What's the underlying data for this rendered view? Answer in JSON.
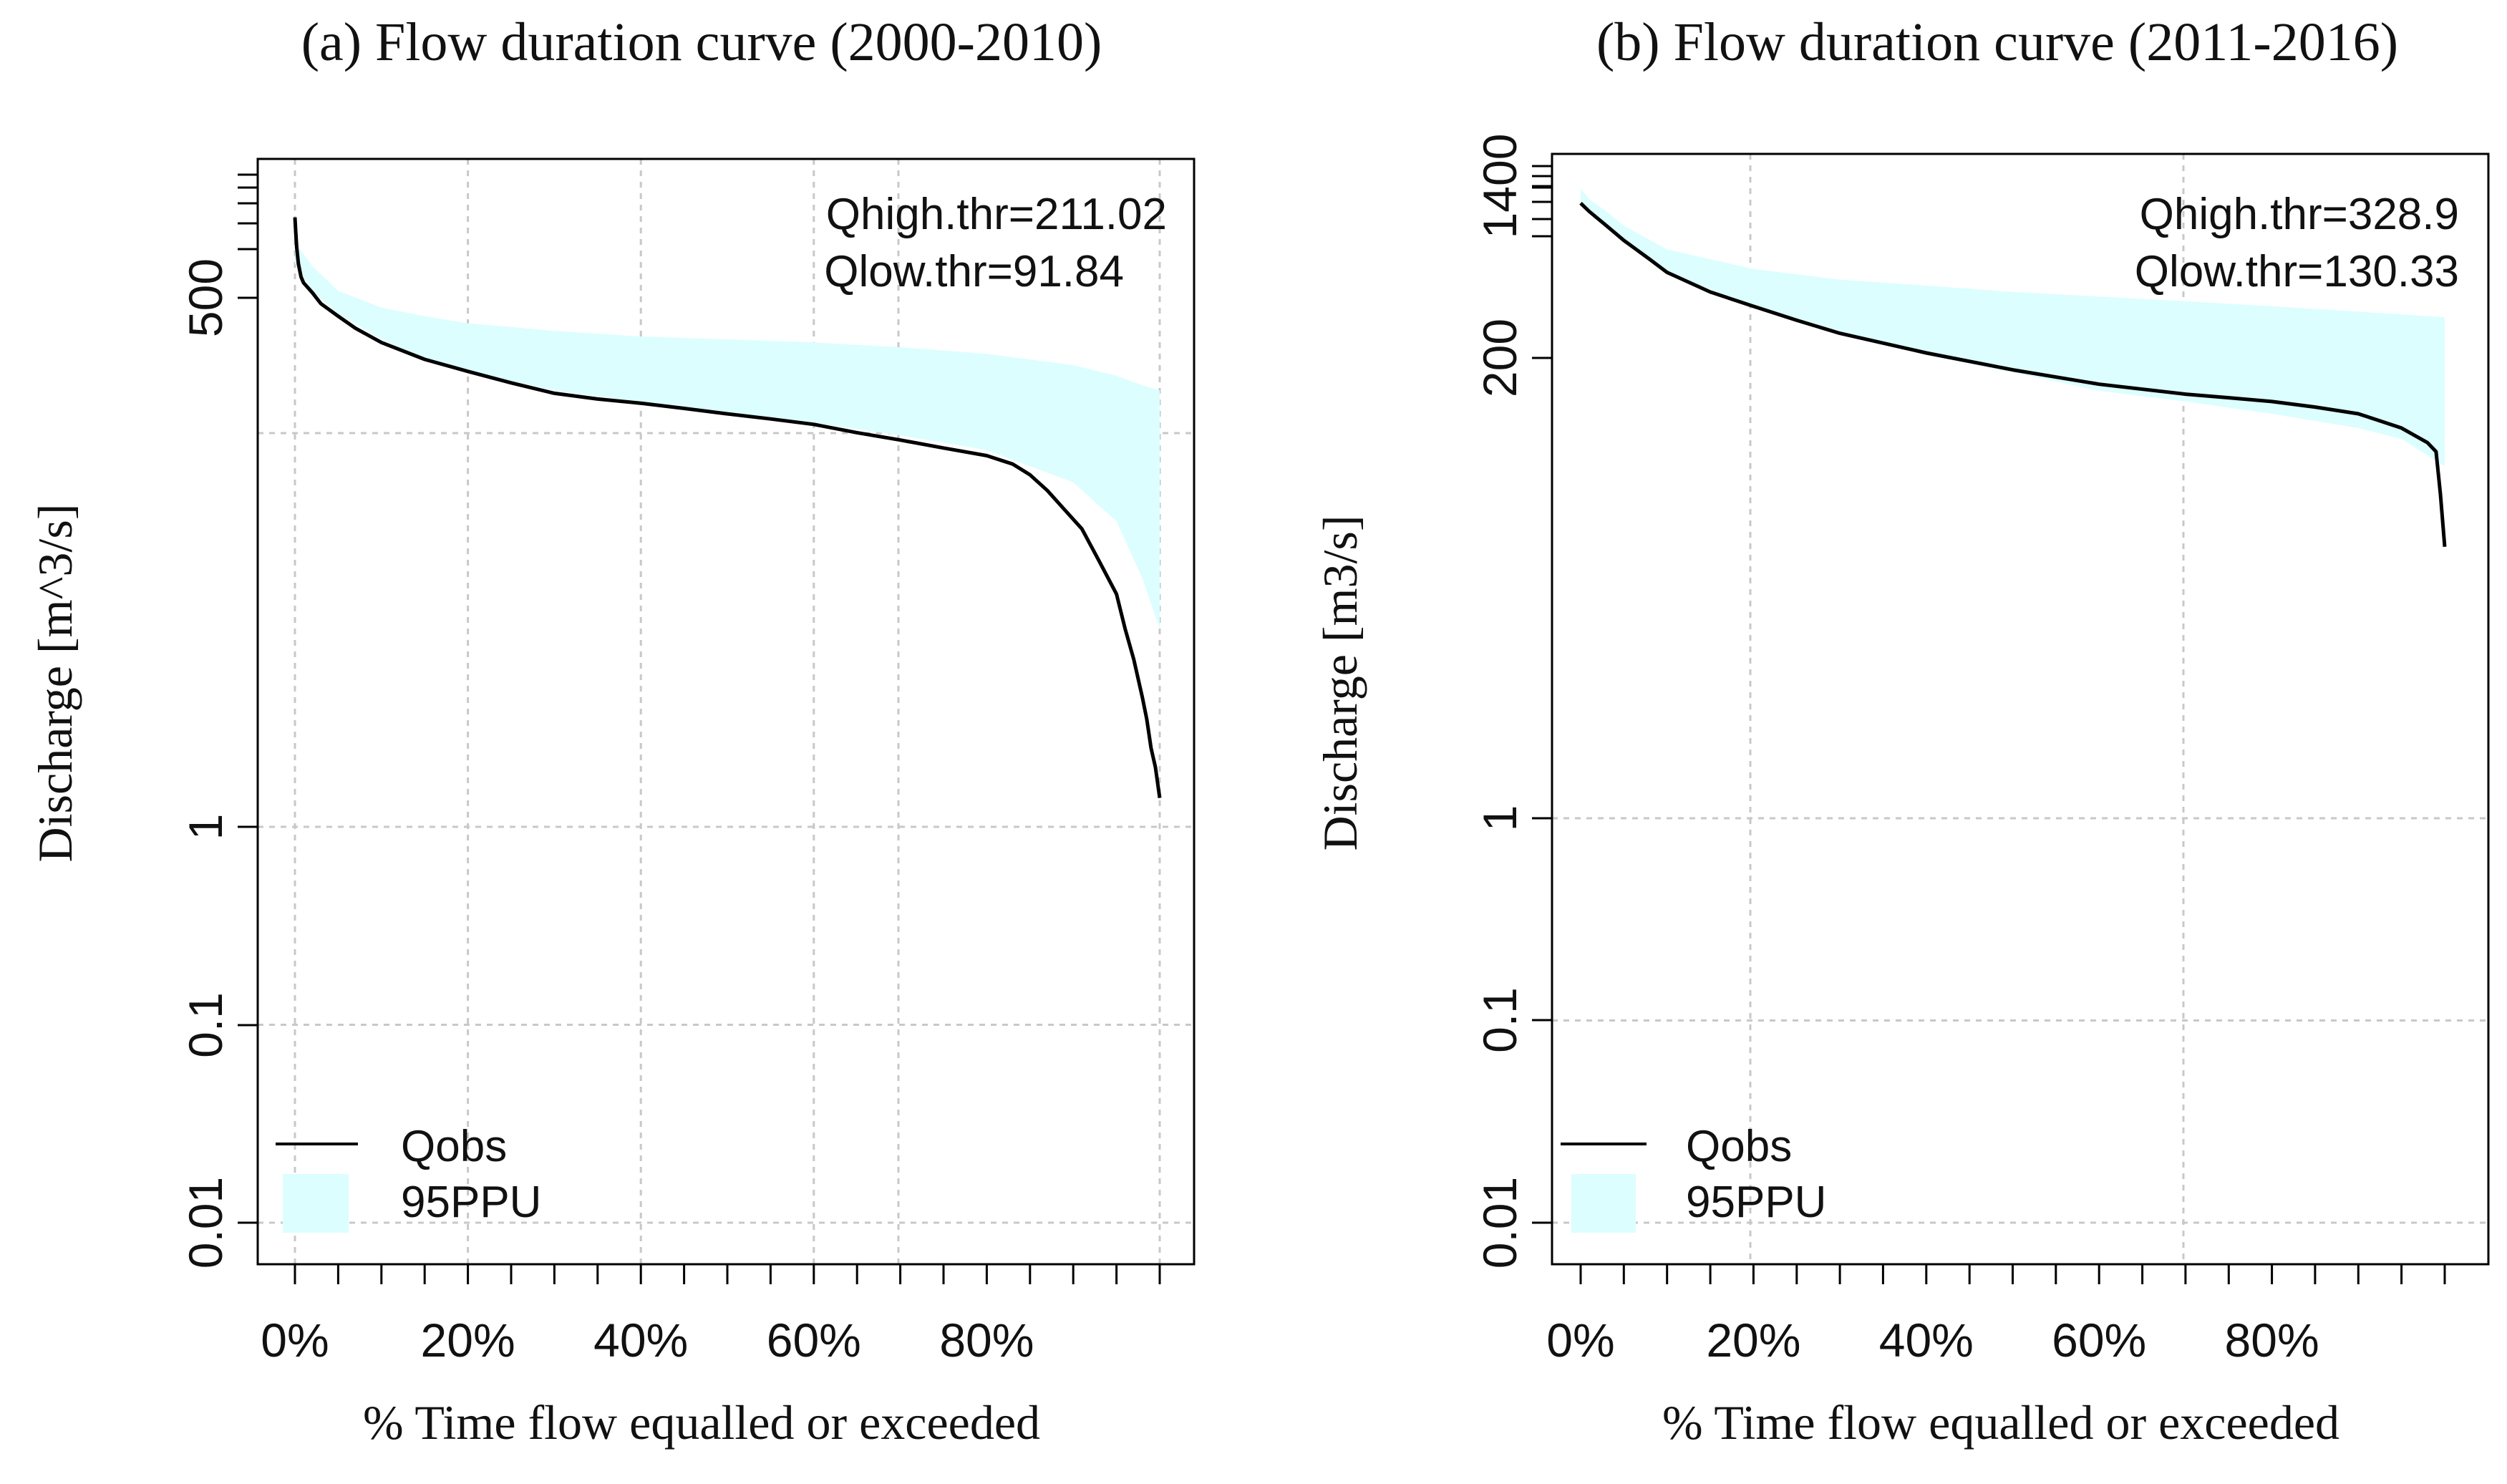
{
  "chart_data": [
    {
      "id": "a",
      "type": "line",
      "title": "(a) Flow duration curve (2000-2010)",
      "xlabel": "% Time flow equalled or exceeded",
      "ylabel": "Discharge [m^3/s]",
      "y_scale": "log",
      "xlim": [
        0,
        100
      ],
      "ylim": [
        0.005,
        3000
      ],
      "x_ticks": [
        0,
        20,
        40,
        60,
        80
      ],
      "x_tick_labels": [
        "0%",
        "20%",
        "40%",
        "60%",
        "80%"
      ],
      "y_ticks": [
        0.01,
        0.1,
        1,
        500
      ],
      "y_tick_labels": [
        "0.01",
        "0.1",
        "1",
        "500"
      ],
      "annotations": [
        "Qhigh.thr=211.02",
        "Qlow.thr=91.84"
      ],
      "legend": [
        "Qobs",
        "95PPU"
      ],
      "legend_position": "bottom-left",
      "series": [
        {
          "name": "Qobs",
          "x": [
            0,
            0.1,
            0.2,
            0.4,
            0.7,
            1,
            2,
            3,
            5,
            7,
            10,
            15,
            20,
            25,
            30,
            35,
            40,
            45,
            50,
            55,
            60,
            65,
            70,
            75,
            80,
            83,
            85,
            87,
            89,
            91,
            93,
            95,
            96,
            97,
            98,
            98.5,
            99,
            99.5,
            100
          ],
          "y": [
            1200,
            1000,
            850,
            700,
            600,
            560,
            500,
            440,
            380,
            330,
            280,
            230,
            200,
            175,
            155,
            145,
            138,
            130,
            122,
            115,
            108,
            98,
            90,
            82,
            75,
            68,
            60,
            50,
            40,
            32,
            22,
            15,
            10,
            7,
            4.5,
            3.5,
            2.5,
            2,
            1.4
          ]
        },
        {
          "name": "95PPU",
          "x": [
            0,
            2,
            5,
            10,
            15,
            20,
            30,
            40,
            50,
            60,
            70,
            80,
            90,
            95,
            98,
            100
          ],
          "lower": [
            700,
            510,
            390,
            290,
            230,
            200,
            160,
            140,
            125,
            110,
            95,
            80,
            55,
            35,
            18,
            10
          ],
          "upper": [
            900,
            680,
            510,
            420,
            380,
            350,
            320,
            300,
            290,
            280,
            265,
            245,
            215,
            190,
            170,
            160
          ]
        }
      ]
    },
    {
      "id": "b",
      "type": "line",
      "title": "(b) Flow duration curve (2011-2016)",
      "xlabel": "% Time flow equalled or exceeded",
      "ylabel": "Discharge [m3/s]",
      "y_scale": "log",
      "xlim": [
        0,
        100
      ],
      "ylim": [
        0.005,
        3000
      ],
      "x_ticks": [
        0,
        20,
        40,
        60,
        80
      ],
      "x_tick_labels": [
        "0%",
        "20%",
        "40%",
        "60%",
        "80%"
      ],
      "y_ticks": [
        0.01,
        0.1,
        1,
        200,
        1400
      ],
      "y_tick_labels": [
        "0.01",
        "0.1",
        "1",
        "200",
        "1400"
      ],
      "annotations": [
        "Qhigh.thr=328.9",
        "Qlow.thr=130.33"
      ],
      "legend": [
        "Qobs",
        "95PPU"
      ],
      "legend_position": "bottom-left",
      "series": [
        {
          "name": "Qobs",
          "x": [
            0,
            1,
            3,
            5,
            8,
            10,
            15,
            20,
            25,
            30,
            40,
            50,
            60,
            70,
            75,
            80,
            85,
            90,
            95,
            98,
            99,
            99.5,
            100
          ],
          "y": [
            1100,
            1000,
            850,
            720,
            580,
            500,
            400,
            340,
            290,
            250,
            200,
            165,
            140,
            125,
            120,
            115,
            108,
            100,
            85,
            72,
            65,
            40,
            22
          ]
        },
        {
          "name": "95PPU",
          "x": [
            0,
            1,
            3,
            5,
            10,
            20,
            30,
            40,
            50,
            60,
            70,
            80,
            90,
            95,
            100
          ],
          "lower": [
            1100,
            1000,
            850,
            720,
            500,
            340,
            250,
            195,
            160,
            130,
            115,
            100,
            85,
            75,
            55
          ],
          "upper": [
            1300,
            1150,
            1000,
            850,
            650,
            520,
            460,
            430,
            400,
            380,
            360,
            340,
            320,
            310,
            300
          ]
        }
      ]
    }
  ]
}
